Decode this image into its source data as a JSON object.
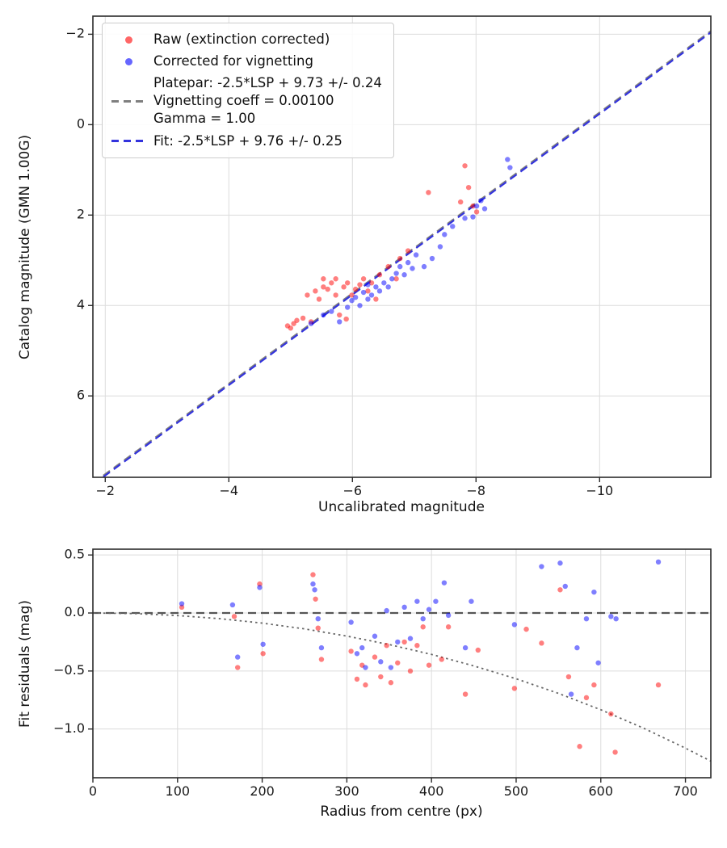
{
  "figure": {
    "background": "#ffffff"
  },
  "legend": {
    "items": [
      {
        "type": "marker",
        "color": "#ff0000",
        "alpha": 0.6,
        "label": "Raw (extinction corrected)"
      },
      {
        "type": "marker",
        "color": "#0000ff",
        "alpha": 0.6,
        "label": "Corrected for vignetting"
      },
      {
        "type": "dashed-line",
        "color": "#7f7f7f",
        "label": "Platepar: -2.5*LSP + 9.73 +/- 0.24\nVignetting coeff = 0.00100\nGamma = 1.00"
      },
      {
        "type": "dashed-line",
        "color": "#3333dd",
        "label": "Fit: -2.5*LSP + 9.76 +/- 0.25"
      }
    ]
  },
  "chart_data": [
    {
      "type": "scatter",
      "xlabel": "Uncalibrated magnitude",
      "ylabel": "Catalog magnitude (GMN 1.00G)",
      "xlim": [
        -1.8,
        -11.8
      ],
      "ylim": [
        -2.4,
        7.8
      ],
      "axes_inverted": true,
      "grid": true,
      "xticks": {
        "values": [
          -2,
          -4,
          -6,
          -8,
          -10
        ],
        "labels": [
          "−2",
          "−4",
          "−6",
          "−8",
          "−10"
        ]
      },
      "yticks": {
        "values": [
          -2,
          0,
          2,
          4,
          6
        ],
        "labels": [
          "−2",
          "0",
          "2",
          "4",
          "6"
        ]
      },
      "series": [
        {
          "name": "Raw (extinction corrected)",
          "color": "#ff0000",
          "alpha": 0.5,
          "points": [
            [
              -4.95,
              4.45
            ],
            [
              -5.0,
              4.5
            ],
            [
              -5.05,
              4.4
            ],
            [
              -5.1,
              4.33
            ],
            [
              -5.2,
              4.28
            ],
            [
              -5.27,
              3.77
            ],
            [
              -5.33,
              4.36
            ],
            [
              -5.4,
              3.68
            ],
            [
              -5.46,
              3.86
            ],
            [
              -5.53,
              3.59
            ],
            [
              -5.53,
              3.41
            ],
            [
              -5.6,
              3.64
            ],
            [
              -5.66,
              3.5
            ],
            [
              -5.73,
              3.77
            ],
            [
              -5.73,
              3.41
            ],
            [
              -5.79,
              4.21
            ],
            [
              -5.86,
              3.59
            ],
            [
              -5.9,
              4.3
            ],
            [
              -5.92,
              3.5
            ],
            [
              -5.99,
              3.77
            ],
            [
              -6.05,
              3.64
            ],
            [
              -6.12,
              3.54
            ],
            [
              -6.18,
              3.41
            ],
            [
              -6.25,
              3.68
            ],
            [
              -6.31,
              3.5
            ],
            [
              -6.38,
              3.86
            ],
            [
              -6.44,
              3.32
            ],
            [
              -6.58,
              3.14
            ],
            [
              -6.71,
              3.41
            ],
            [
              -6.77,
              2.96
            ],
            [
              -6.9,
              2.79
            ],
            [
              -7.23,
              1.5
            ],
            [
              -7.75,
              1.71
            ],
            [
              -7.82,
              0.91
            ],
            [
              -7.88,
              1.39
            ],
            [
              -7.95,
              1.8
            ],
            [
              -8.01,
              1.93
            ]
          ]
        },
        {
          "name": "Corrected for vignetting",
          "color": "#0000ff",
          "alpha": 0.5,
          "points": [
            [
              -5.33,
              4.4
            ],
            [
              -5.53,
              4.21
            ],
            [
              -5.66,
              4.13
            ],
            [
              -5.79,
              4.36
            ],
            [
              -5.92,
              4.04
            ],
            [
              -5.99,
              3.89
            ],
            [
              -6.05,
              3.82
            ],
            [
              -6.12,
              4.0
            ],
            [
              -6.18,
              3.71
            ],
            [
              -6.25,
              3.86
            ],
            [
              -6.25,
              3.54
            ],
            [
              -6.31,
              3.77
            ],
            [
              -6.38,
              3.59
            ],
            [
              -6.44,
              3.68
            ],
            [
              -6.51,
              3.5
            ],
            [
              -6.58,
              3.59
            ],
            [
              -6.64,
              3.41
            ],
            [
              -6.71,
              3.29
            ],
            [
              -6.77,
              3.14
            ],
            [
              -6.84,
              3.32
            ],
            [
              -6.9,
              3.05
            ],
            [
              -6.97,
              3.18
            ],
            [
              -7.03,
              2.88
            ],
            [
              -7.16,
              3.14
            ],
            [
              -7.29,
              2.96
            ],
            [
              -7.42,
              2.7
            ],
            [
              -7.49,
              2.43
            ],
            [
              -7.62,
              2.25
            ],
            [
              -7.82,
              2.07
            ],
            [
              -7.95,
              2.04
            ],
            [
              -8.01,
              1.8
            ],
            [
              -8.08,
              1.68
            ],
            [
              -8.14,
              1.86
            ],
            [
              -8.51,
              0.77
            ],
            [
              -8.55,
              0.95
            ]
          ]
        }
      ],
      "lines": [
        {
          "name": "platepar-line",
          "label": "Platepar: -2.5*LSP + 9.73 +/- 0.24",
          "color": "#7f7f7f",
          "dash": "dashed",
          "slope": 1,
          "intercept": 9.73
        },
        {
          "name": "fit-line",
          "label": "Fit: -2.5*LSP + 9.76 +/- 0.25",
          "color": "#3333dd",
          "dash": "dashed",
          "slope": 1,
          "intercept": 9.76
        }
      ]
    },
    {
      "type": "scatter",
      "xlabel": "Radius from centre (px)",
      "ylabel": "Fit residuals (mag)",
      "xlim": [
        0,
        730
      ],
      "ylim": [
        0.55,
        -1.42
      ],
      "grid": true,
      "xticks": {
        "values": [
          0,
          100,
          200,
          300,
          400,
          500,
          600,
          700
        ],
        "labels": [
          "0",
          "100",
          "200",
          "300",
          "400",
          "500",
          "600",
          "700"
        ]
      },
      "yticks": {
        "values": [
          0.5,
          0.0,
          -0.5,
          -1.0
        ],
        "labels": [
          "0.5",
          "0.0",
          "−0.5",
          "−1.0"
        ]
      },
      "series": [
        {
          "name": "Raw (extinction corrected)",
          "color": "#ff0000",
          "alpha": 0.5,
          "points": [
            [
              105,
              0.05
            ],
            [
              167,
              -0.03
            ],
            [
              171,
              -0.47
            ],
            [
              197,
              0.25
            ],
            [
              201,
              -0.35
            ],
            [
              260,
              0.33
            ],
            [
              263,
              0.12
            ],
            [
              266,
              -0.13
            ],
            [
              270,
              -0.4
            ],
            [
              305,
              -0.33
            ],
            [
              312,
              -0.57
            ],
            [
              318,
              -0.45
            ],
            [
              322,
              -0.62
            ],
            [
              333,
              -0.38
            ],
            [
              340,
              -0.55
            ],
            [
              347,
              -0.28
            ],
            [
              352,
              -0.6
            ],
            [
              360,
              -0.43
            ],
            [
              368,
              -0.25
            ],
            [
              375,
              -0.5
            ],
            [
              383,
              -0.28
            ],
            [
              390,
              -0.12
            ],
            [
              397,
              -0.45
            ],
            [
              412,
              -0.4
            ],
            [
              420,
              -0.12
            ],
            [
              440,
              -0.7
            ],
            [
              455,
              -0.32
            ],
            [
              498,
              -0.65
            ],
            [
              512,
              -0.14
            ],
            [
              530,
              -0.26
            ],
            [
              552,
              0.2
            ],
            [
              562,
              -0.55
            ],
            [
              575,
              -1.15
            ],
            [
              583,
              -0.73
            ],
            [
              592,
              -0.62
            ],
            [
              612,
              -0.87
            ],
            [
              617,
              -1.2
            ],
            [
              668,
              -0.62
            ]
          ]
        },
        {
          "name": "Corrected for vignetting",
          "color": "#0000ff",
          "alpha": 0.5,
          "points": [
            [
              105,
              0.08
            ],
            [
              165,
              0.07
            ],
            [
              171,
              -0.38
            ],
            [
              197,
              0.22
            ],
            [
              201,
              -0.27
            ],
            [
              260,
              0.25
            ],
            [
              262,
              0.2
            ],
            [
              266,
              -0.05
            ],
            [
              270,
              -0.3
            ],
            [
              305,
              -0.08
            ],
            [
              312,
              -0.35
            ],
            [
              318,
              -0.3
            ],
            [
              322,
              -0.47
            ],
            [
              333,
              -0.2
            ],
            [
              340,
              -0.42
            ],
            [
              347,
              0.02
            ],
            [
              352,
              -0.47
            ],
            [
              360,
              -0.25
            ],
            [
              368,
              0.05
            ],
            [
              375,
              -0.22
            ],
            [
              383,
              0.1
            ],
            [
              390,
              -0.05
            ],
            [
              397,
              0.03
            ],
            [
              405,
              0.1
            ],
            [
              415,
              0.26
            ],
            [
              420,
              -0.02
            ],
            [
              440,
              -0.3
            ],
            [
              447,
              0.1
            ],
            [
              498,
              -0.1
            ],
            [
              530,
              0.4
            ],
            [
              552,
              0.43
            ],
            [
              558,
              0.23
            ],
            [
              565,
              -0.7
            ],
            [
              572,
              -0.3
            ],
            [
              583,
              -0.05
            ],
            [
              592,
              0.18
            ],
            [
              597,
              -0.43
            ],
            [
              612,
              -0.03
            ],
            [
              618,
              -0.05
            ],
            [
              668,
              0.44
            ]
          ]
        }
      ],
      "lines": [
        {
          "name": "zero-residual-line",
          "color": "#555555",
          "dash": "dashed",
          "slope": 0,
          "intercept": 0
        }
      ],
      "curve": {
        "name": "vignetting-model-curve",
        "color": "#666666",
        "dash": "dotted",
        "points": [
          [
            0,
            0
          ],
          [
            50,
            -0.005
          ],
          [
            100,
            -0.022
          ],
          [
            150,
            -0.049
          ],
          [
            200,
            -0.087
          ],
          [
            250,
            -0.137
          ],
          [
            300,
            -0.199
          ],
          [
            350,
            -0.272
          ],
          [
            400,
            -0.357
          ],
          [
            450,
            -0.456
          ],
          [
            500,
            -0.567
          ],
          [
            550,
            -0.693
          ],
          [
            600,
            -0.834
          ],
          [
            650,
            -0.991
          ],
          [
            700,
            -1.165
          ],
          [
            730,
            -1.277
          ]
        ]
      }
    }
  ]
}
